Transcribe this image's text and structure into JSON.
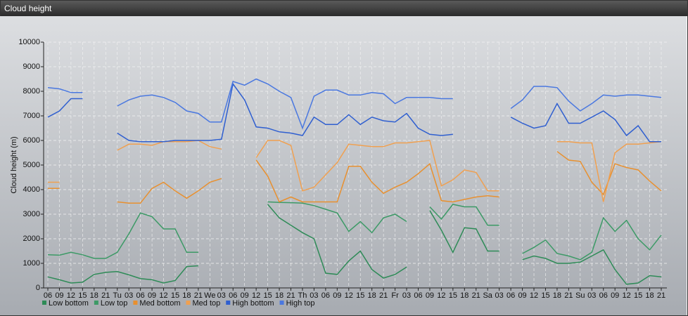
{
  "chart_data": {
    "type": "line",
    "title": "Cloud height",
    "y_label": "Cloud height (m)",
    "categories": [
      "06",
      "09",
      "12",
      "15",
      "18",
      "21",
      "Tu",
      "03",
      "06",
      "09",
      "12",
      "15",
      "18",
      "21",
      "We",
      "03",
      "06",
      "09",
      "12",
      "15",
      "18",
      "21",
      "Th",
      "03",
      "06",
      "09",
      "12",
      "15",
      "18",
      "21",
      "Fr",
      "03",
      "06",
      "09",
      "12",
      "15",
      "18",
      "21",
      "Sa",
      "03",
      "06",
      "09",
      "12",
      "15",
      "18",
      "21",
      "Su",
      "03",
      "06",
      "09",
      "12",
      "15",
      "18",
      "21"
    ],
    "ylim": [
      0,
      10000
    ],
    "yticks": [
      0,
      1000,
      2000,
      3000,
      4000,
      5000,
      6000,
      7000,
      8000,
      9000,
      10000
    ],
    "grid": true,
    "series": [
      {
        "name": "Low bottom",
        "color": "#2e8b57",
        "values": [
          450,
          330,
          200,
          230,
          550,
          630,
          670,
          530,
          380,
          330,
          200,
          300,
          870,
          900,
          null,
          null,
          null,
          null,
          null,
          3400,
          2850,
          2550,
          2250,
          2000,
          600,
          550,
          1100,
          1500,
          750,
          400,
          550,
          850,
          null,
          3150,
          2350,
          1450,
          2450,
          2400,
          1500,
          1500,
          null,
          1150,
          1300,
          1200,
          1000,
          1000,
          1050,
          1300,
          1550,
          750,
          150,
          200,
          500,
          450
        ]
      },
      {
        "name": "Low top",
        "color": "#3c9a66",
        "values": [
          1350,
          1330,
          1450,
          1350,
          1200,
          1200,
          1450,
          2200,
          3050,
          2900,
          2400,
          2400,
          1450,
          1450,
          null,
          null,
          null,
          null,
          null,
          3500,
          3480,
          3470,
          3450,
          3350,
          3200,
          3050,
          2300,
          2700,
          2250,
          2850,
          3000,
          2700,
          null,
          3300,
          2800,
          3400,
          3300,
          3300,
          2550,
          2550,
          null,
          1400,
          1650,
          1950,
          1400,
          1300,
          1150,
          1450,
          2850,
          2300,
          2750,
          2000,
          1550,
          2150
        ]
      },
      {
        "name": "Med bottom",
        "color": "#e8902f",
        "values": [
          4050,
          4050,
          null,
          null,
          null,
          null,
          3500,
          3450,
          3450,
          4050,
          4300,
          3950,
          3650,
          3950,
          4300,
          4450,
          null,
          null,
          5200,
          4550,
          3500,
          3700,
          3500,
          3500,
          3500,
          3500,
          4950,
          4950,
          4300,
          3850,
          4100,
          4300,
          4650,
          5050,
          3550,
          3500,
          3600,
          3700,
          3750,
          3700,
          null,
          null,
          null,
          null,
          5550,
          5200,
          5150,
          4300,
          3800,
          5050,
          4900,
          4800,
          4350,
          3950
        ]
      },
      {
        "name": "Med top",
        "color": "#f0a050",
        "values": [
          4300,
          4300,
          null,
          null,
          null,
          null,
          5600,
          5850,
          5850,
          5800,
          5950,
          5950,
          5950,
          6000,
          5750,
          5650,
          null,
          null,
          5300,
          6000,
          6000,
          5800,
          3950,
          4100,
          4600,
          5100,
          5850,
          5800,
          5750,
          5750,
          5900,
          5900,
          5950,
          6000,
          4150,
          4400,
          4800,
          4700,
          3950,
          3950,
          null,
          null,
          null,
          null,
          5950,
          5950,
          5900,
          5900,
          3500,
          5500,
          5850,
          5850,
          5900,
          5950
        ]
      },
      {
        "name": "High bottom",
        "color": "#2f5fd0",
        "values": [
          6950,
          7200,
          7700,
          7700,
          null,
          null,
          6300,
          6000,
          5950,
          5950,
          5950,
          6000,
          6000,
          6000,
          6000,
          6050,
          8300,
          7650,
          6550,
          6500,
          6350,
          6300,
          6200,
          6950,
          6650,
          6650,
          7050,
          6650,
          6950,
          6800,
          6750,
          7100,
          6500,
          6250,
          6200,
          6250,
          null,
          null,
          null,
          null,
          6950,
          6700,
          6500,
          6600,
          7500,
          6700,
          6700,
          6950,
          7200,
          6850,
          6200,
          6600,
          5950,
          5950
        ]
      },
      {
        "name": "High top",
        "color": "#4a78e0",
        "values": [
          8150,
          8100,
          7950,
          7950,
          null,
          null,
          7400,
          7650,
          7800,
          7850,
          7750,
          7550,
          7200,
          7100,
          6750,
          6750,
          8400,
          8250,
          8500,
          8300,
          8000,
          7750,
          6500,
          7800,
          8050,
          8050,
          7850,
          7850,
          7950,
          7900,
          7500,
          7750,
          7750,
          7750,
          7700,
          7700,
          null,
          null,
          null,
          null,
          7300,
          7650,
          8200,
          8200,
          8150,
          7600,
          7200,
          7500,
          7850,
          7800,
          7850,
          7850,
          7800,
          7750
        ]
      }
    ]
  }
}
